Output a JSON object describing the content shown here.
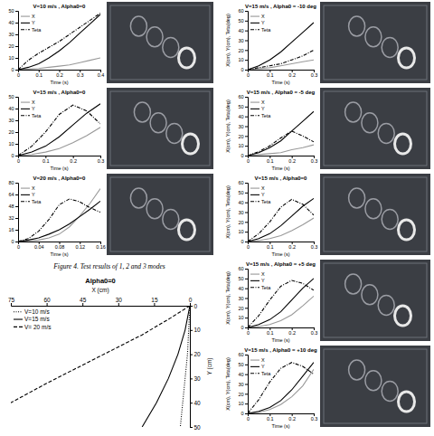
{
  "caption": "Figure 4. Test results of 1, 2 and 3 modes",
  "chart_data": [
    {
      "type": "line",
      "title": "V=10 m/s , Alpha0=0",
      "x_label": "Time (s)",
      "x": [
        0,
        0.05,
        0.1,
        0.15,
        0.2,
        0.25,
        0.3,
        0.35,
        0.4
      ],
      "series": [
        {
          "name": "X",
          "color": "#999999",
          "line_style": "solid",
          "values": [
            0,
            0.5,
            1,
            2,
            3,
            4,
            6,
            8,
            10
          ]
        },
        {
          "name": "Y",
          "color": "#000000",
          "line_style": "solid",
          "values": [
            0,
            2,
            5,
            10,
            16,
            23,
            31,
            39,
            47
          ]
        },
        {
          "name": "Teta",
          "color": "#000000",
          "line_style": "dashdot",
          "values": [
            0,
            8,
            14,
            19,
            24,
            30,
            36,
            42,
            48
          ]
        }
      ],
      "xlim": [
        0,
        0.4
      ],
      "xticks": [
        0,
        0.1,
        0.2,
        0.3,
        0.4
      ],
      "ylim": [
        0,
        50
      ],
      "yticks": [
        0,
        10,
        20,
        30,
        40,
        50
      ],
      "legend": "upper left"
    },
    {
      "type": "line",
      "title": "V=15 m/s , Alpha0=0",
      "x_label": "Time (s)",
      "x": [
        0,
        0.05,
        0.1,
        0.15,
        0.2,
        0.25,
        0.3
      ],
      "series": [
        {
          "name": "X",
          "color": "#999999",
          "line_style": "solid",
          "values": [
            0,
            1,
            3,
            6,
            11,
            17,
            24
          ]
        },
        {
          "name": "Y",
          "color": "#000000",
          "line_style": "solid",
          "values": [
            0,
            3,
            8,
            16,
            26,
            36,
            44
          ]
        },
        {
          "name": "Teta",
          "color": "#000000",
          "line_style": "dashdot",
          "values": [
            0,
            8,
            20,
            35,
            43,
            38,
            27
          ]
        }
      ],
      "xlim": [
        0,
        0.3
      ],
      "xticks": [
        0,
        0.1,
        0.2,
        0.3
      ],
      "ylim": [
        0,
        50
      ],
      "yticks": [
        0,
        10,
        20,
        30,
        40,
        50
      ],
      "legend": "upper left"
    },
    {
      "type": "line",
      "title": "V=20 m/s , Alpha0=0",
      "x_label": "Time (s)",
      "x": [
        0,
        0.02,
        0.04,
        0.06,
        0.08,
        0.1,
        0.12,
        0.14,
        0.16
      ],
      "series": [
        {
          "name": "X",
          "color": "#999999",
          "line_style": "solid",
          "values": [
            0,
            1,
            2,
            5,
            10,
            20,
            35,
            52,
            72
          ]
        },
        {
          "name": "Y",
          "color": "#000000",
          "line_style": "solid",
          "values": [
            0,
            2,
            5,
            10,
            16,
            24,
            34,
            44,
            55
          ]
        },
        {
          "name": "Teta",
          "color": "#000000",
          "line_style": "dashdot",
          "values": [
            0,
            4,
            14,
            30,
            50,
            58,
            54,
            46,
            40
          ]
        }
      ],
      "xlim": [
        0,
        0.16
      ],
      "xticks": [
        0,
        0.04,
        0.08,
        0.12,
        0.16
      ],
      "ylim": [
        0,
        80
      ],
      "yticks": [
        0,
        16,
        32,
        48,
        64,
        80
      ],
      "legend": "upper left"
    },
    {
      "type": "line",
      "title": "V=15 m/s , Alpha0 = -10 deg",
      "x_label": "Time (s)",
      "y_label": "X(cm), Y(cm), Teta(deg)",
      "x": [
        0,
        0.05,
        0.1,
        0.15,
        0.2,
        0.25,
        0.3
      ],
      "series": [
        {
          "name": "X",
          "color": "#999999",
          "line_style": "solid",
          "values": [
            0,
            1,
            2,
            4,
            6,
            8,
            10
          ]
        },
        {
          "name": "Y",
          "color": "#000000",
          "line_style": "solid",
          "values": [
            0,
            4,
            10,
            18,
            28,
            38,
            48
          ]
        },
        {
          "name": "Teta",
          "color": "#000000",
          "line_style": "dashdot",
          "values": [
            0,
            2,
            4,
            6,
            10,
            14,
            20
          ]
        }
      ],
      "xlim": [
        0,
        0.3
      ],
      "xticks": [
        0,
        0.1,
        0.2,
        0.3
      ],
      "ylim": [
        0,
        60
      ],
      "yticks": [
        0,
        10,
        20,
        30,
        40,
        50,
        60
      ],
      "legend": "upper left"
    },
    {
      "type": "line",
      "title": "V=15 m/s , Alpha0 = -5 deg",
      "x_label": "Time (s)",
      "y_label": "X(cm), Y(cm), Teta(deg)",
      "x": [
        0,
        0.05,
        0.1,
        0.15,
        0.2,
        0.25,
        0.3
      ],
      "series": [
        {
          "name": "X",
          "color": "#999999",
          "line_style": "solid",
          "values": [
            0,
            1,
            2,
            3,
            6,
            8,
            11
          ]
        },
        {
          "name": "Y",
          "color": "#000000",
          "line_style": "solid",
          "values": [
            0,
            3,
            8,
            15,
            25,
            35,
            45
          ]
        },
        {
          "name": "Teta",
          "color": "#000000",
          "line_style": "dashdot",
          "values": [
            0,
            4,
            10,
            18,
            25,
            20,
            14
          ]
        }
      ],
      "xlim": [
        0,
        0.3
      ],
      "xticks": [
        0,
        0.1,
        0.2,
        0.3
      ],
      "ylim": [
        0,
        60
      ],
      "yticks": [
        0,
        10,
        20,
        30,
        40,
        50,
        60
      ],
      "legend": "upper left"
    },
    {
      "type": "line",
      "title": "V=15 m/s , Alpha0=0",
      "x_label": "Time (s)",
      "y_label": "X(cm), Y(cm), Teta(deg)",
      "x": [
        0,
        0.05,
        0.1,
        0.15,
        0.2,
        0.25,
        0.3
      ],
      "series": [
        {
          "name": "X",
          "color": "#999999",
          "line_style": "solid",
          "values": [
            0,
            1,
            3,
            6,
            11,
            17,
            24
          ]
        },
        {
          "name": "Y",
          "color": "#000000",
          "line_style": "solid",
          "values": [
            0,
            3,
            8,
            16,
            26,
            36,
            44
          ]
        },
        {
          "name": "Teta",
          "color": "#000000",
          "line_style": "dashdot",
          "values": [
            0,
            8,
            20,
            35,
            43,
            38,
            27
          ]
        }
      ],
      "xlim": [
        0,
        0.3
      ],
      "xticks": [
        0,
        0.1,
        0.2,
        0.3
      ],
      "ylim": [
        0,
        60
      ],
      "yticks": [
        0,
        10,
        20,
        30,
        40,
        50,
        60
      ],
      "legend": "upper left"
    },
    {
      "type": "line",
      "title": "V=15 m/s , Alpha0 = +5 deg",
      "x_label": "Time (s)",
      "y_label": "X(cm), Y(cm), Teta(deg)",
      "x": [
        0,
        0.05,
        0.1,
        0.15,
        0.2,
        0.25,
        0.3
      ],
      "series": [
        {
          "name": "X",
          "color": "#999999",
          "line_style": "solid",
          "values": [
            0,
            1,
            3,
            7,
            13,
            22,
            32
          ]
        },
        {
          "name": "Y",
          "color": "#000000",
          "line_style": "solid",
          "values": [
            0,
            3,
            8,
            16,
            28,
            40,
            50
          ]
        },
        {
          "name": "Teta",
          "color": "#000000",
          "line_style": "dashdot",
          "values": [
            0,
            12,
            28,
            42,
            48,
            45,
            38
          ]
        }
      ],
      "xlim": [
        0,
        0.3
      ],
      "xticks": [
        0,
        0.1,
        0.2,
        0.3
      ],
      "ylim": [
        0,
        60
      ],
      "yticks": [
        0,
        10,
        20,
        30,
        40,
        50,
        60
      ],
      "legend": "upper left"
    },
    {
      "type": "line",
      "title": "V=15 m/s , Alpha0 = +10 deg",
      "x_label": "Time (s)",
      "y_label": "X(cm), Y(cm), Teta(deg)",
      "x": [
        0,
        0.05,
        0.1,
        0.15,
        0.2,
        0.25,
        0.3
      ],
      "series": [
        {
          "name": "X",
          "color": "#999999",
          "line_style": "solid",
          "values": [
            0,
            1,
            4,
            9,
            17,
            28,
            45
          ]
        },
        {
          "name": "Y",
          "color": "#000000",
          "line_style": "solid",
          "values": [
            0,
            2,
            6,
            13,
            24,
            38,
            52
          ]
        },
        {
          "name": "Teta",
          "color": "#000000",
          "line_style": "dashdot",
          "values": [
            0,
            14,
            32,
            46,
            52,
            48,
            40
          ]
        }
      ],
      "xlim": [
        0,
        0.3
      ],
      "xticks": [
        0,
        0.1,
        0.2,
        0.3
      ],
      "ylim": [
        0,
        60
      ],
      "yticks": [
        0,
        10,
        20,
        30,
        40,
        50,
        60
      ],
      "legend": "upper left"
    },
    {
      "type": "line",
      "title": "Alpha0=0",
      "x_label": "X (cm)",
      "y_label": "Y (cm)",
      "series": [
        {
          "name": "V=10 m/s",
          "color": "#000000",
          "line_style": "dotted",
          "x": [
            0,
            0.5,
            1,
            2,
            3,
            4
          ],
          "values": [
            0,
            10,
            20,
            30,
            40,
            50
          ]
        },
        {
          "name": "V=15 m/s",
          "color": "#000000",
          "line_style": "solid",
          "x": [
            0,
            2,
            5,
            9,
            14,
            20
          ],
          "values": [
            0,
            10,
            20,
            30,
            40,
            50
          ]
        },
        {
          "name": "V= 20 m/s",
          "color": "#000000",
          "line_style": "dashed",
          "x": [
            0,
            8,
            20,
            38,
            60,
            75
          ],
          "values": [
            0,
            5,
            12,
            21,
            32,
            40
          ]
        }
      ],
      "xlim": [
        75,
        0
      ],
      "xticks": [
        75,
        60,
        45,
        30,
        15,
        0
      ],
      "ylim": [
        50,
        0
      ],
      "yticks": [
        0,
        10,
        20,
        30,
        40,
        50
      ],
      "legend": "upper left"
    }
  ]
}
